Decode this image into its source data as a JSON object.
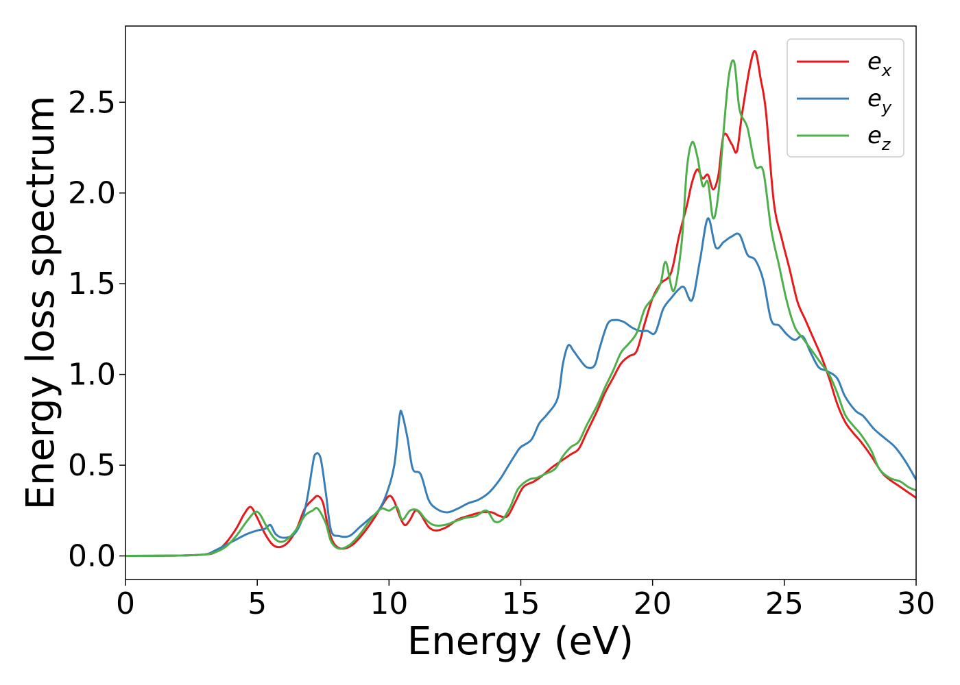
{
  "chart_data": {
    "type": "line",
    "xlabel": "Energy (eV)",
    "ylabel": "Energy loss spectrum",
    "xlim": [
      0,
      30
    ],
    "ylim": [
      -0.13,
      2.92
    ],
    "xticks": [
      "0",
      "5",
      "10",
      "15",
      "20",
      "25",
      "30"
    ],
    "yticks": [
      "0.0",
      "0.5",
      "1.0",
      "1.5",
      "2.0",
      "2.5"
    ],
    "grid": false,
    "legend_position": "top-right",
    "series": [
      {
        "name": "e",
        "subscript": "x",
        "color": "#e41a1c",
        "points": [
          [
            0,
            0
          ],
          [
            2,
            0.002
          ],
          [
            3,
            0.008
          ],
          [
            3.4,
            0.02
          ],
          [
            3.8,
            0.07
          ],
          [
            4.2,
            0.15
          ],
          [
            4.5,
            0.23
          ],
          [
            4.75,
            0.27
          ],
          [
            5.0,
            0.21
          ],
          [
            5.3,
            0.12
          ],
          [
            5.6,
            0.06
          ],
          [
            5.9,
            0.05
          ],
          [
            6.2,
            0.08
          ],
          [
            6.5,
            0.15
          ],
          [
            6.8,
            0.26
          ],
          [
            7.1,
            0.31
          ],
          [
            7.3,
            0.33
          ],
          [
            7.5,
            0.29
          ],
          [
            7.7,
            0.15
          ],
          [
            7.9,
            0.07
          ],
          [
            8.2,
            0.04
          ],
          [
            8.6,
            0.06
          ],
          [
            9.0,
            0.12
          ],
          [
            9.4,
            0.2
          ],
          [
            9.7,
            0.27
          ],
          [
            10.0,
            0.33
          ],
          [
            10.2,
            0.3
          ],
          [
            10.4,
            0.22
          ],
          [
            10.6,
            0.17
          ],
          [
            10.8,
            0.2
          ],
          [
            11.0,
            0.25
          ],
          [
            11.2,
            0.23
          ],
          [
            11.5,
            0.16
          ],
          [
            11.8,
            0.14
          ],
          [
            12.2,
            0.16
          ],
          [
            12.6,
            0.2
          ],
          [
            13.0,
            0.22
          ],
          [
            13.5,
            0.24
          ],
          [
            13.9,
            0.24
          ],
          [
            14.2,
            0.22
          ],
          [
            14.5,
            0.22
          ],
          [
            14.8,
            0.3
          ],
          [
            15.1,
            0.38
          ],
          [
            15.5,
            0.41
          ],
          [
            15.8,
            0.44
          ],
          [
            16.2,
            0.49
          ],
          [
            16.5,
            0.52
          ],
          [
            16.9,
            0.56
          ],
          [
            17.2,
            0.59
          ],
          [
            17.5,
            0.68
          ],
          [
            17.9,
            0.8
          ],
          [
            18.2,
            0.9
          ],
          [
            18.5,
            0.98
          ],
          [
            18.8,
            1.06
          ],
          [
            19.1,
            1.1
          ],
          [
            19.4,
            1.13
          ],
          [
            19.7,
            1.28
          ],
          [
            20.0,
            1.42
          ],
          [
            20.3,
            1.5
          ],
          [
            20.7,
            1.56
          ],
          [
            21.0,
            1.76
          ],
          [
            21.3,
            1.93
          ],
          [
            21.5,
            2.06
          ],
          [
            21.7,
            2.13
          ],
          [
            21.9,
            2.08
          ],
          [
            22.1,
            2.1
          ],
          [
            22.3,
            2.02
          ],
          [
            22.5,
            2.1
          ],
          [
            22.7,
            2.32
          ],
          [
            23.0,
            2.27
          ],
          [
            23.2,
            2.23
          ],
          [
            23.4,
            2.44
          ],
          [
            23.7,
            2.7
          ],
          [
            23.9,
            2.78
          ],
          [
            24.1,
            2.63
          ],
          [
            24.3,
            2.45
          ],
          [
            24.6,
            1.95
          ],
          [
            24.9,
            1.75
          ],
          [
            25.2,
            1.58
          ],
          [
            25.5,
            1.4
          ],
          [
            25.8,
            1.3
          ],
          [
            26.1,
            1.2
          ],
          [
            26.4,
            1.1
          ],
          [
            26.7,
            0.98
          ],
          [
            27.0,
            0.84
          ],
          [
            27.3,
            0.74
          ],
          [
            27.6,
            0.68
          ],
          [
            27.9,
            0.63
          ],
          [
            28.3,
            0.55
          ],
          [
            28.7,
            0.46
          ],
          [
            29.0,
            0.42
          ],
          [
            29.4,
            0.38
          ],
          [
            29.7,
            0.35
          ],
          [
            30.0,
            0.32
          ]
        ]
      },
      {
        "name": "e",
        "subscript": "y",
        "color": "#377eb8",
        "points": [
          [
            0,
            0
          ],
          [
            2,
            0.002
          ],
          [
            3,
            0.008
          ],
          [
            3.4,
            0.03
          ],
          [
            3.8,
            0.06
          ],
          [
            4.2,
            0.09
          ],
          [
            4.6,
            0.12
          ],
          [
            5.0,
            0.14
          ],
          [
            5.3,
            0.15
          ],
          [
            5.5,
            0.17
          ],
          [
            5.7,
            0.12
          ],
          [
            6.0,
            0.1
          ],
          [
            6.4,
            0.12
          ],
          [
            6.7,
            0.2
          ],
          [
            6.9,
            0.32
          ],
          [
            7.1,
            0.5
          ],
          [
            7.2,
            0.56
          ],
          [
            7.4,
            0.54
          ],
          [
            7.6,
            0.35
          ],
          [
            7.8,
            0.14
          ],
          [
            8.1,
            0.11
          ],
          [
            8.5,
            0.11
          ],
          [
            8.9,
            0.16
          ],
          [
            9.3,
            0.21
          ],
          [
            9.6,
            0.25
          ],
          [
            9.9,
            0.34
          ],
          [
            10.2,
            0.5
          ],
          [
            10.4,
            0.77
          ],
          [
            10.5,
            0.78
          ],
          [
            10.7,
            0.65
          ],
          [
            10.9,
            0.48
          ],
          [
            11.2,
            0.45
          ],
          [
            11.5,
            0.31
          ],
          [
            11.8,
            0.26
          ],
          [
            12.2,
            0.24
          ],
          [
            12.6,
            0.26
          ],
          [
            13.0,
            0.29
          ],
          [
            13.4,
            0.31
          ],
          [
            13.8,
            0.35
          ],
          [
            14.2,
            0.42
          ],
          [
            14.5,
            0.49
          ],
          [
            14.8,
            0.56
          ],
          [
            15.0,
            0.6
          ],
          [
            15.4,
            0.64
          ],
          [
            15.7,
            0.73
          ],
          [
            16.0,
            0.78
          ],
          [
            16.4,
            0.87
          ],
          [
            16.6,
            1.06
          ],
          [
            16.8,
            1.16
          ],
          [
            17.0,
            1.13
          ],
          [
            17.2,
            1.09
          ],
          [
            17.5,
            1.04
          ],
          [
            17.8,
            1.05
          ],
          [
            18.0,
            1.15
          ],
          [
            18.3,
            1.28
          ],
          [
            18.6,
            1.3
          ],
          [
            18.9,
            1.29
          ],
          [
            19.2,
            1.26
          ],
          [
            19.5,
            1.24
          ],
          [
            19.8,
            1.24
          ],
          [
            20.1,
            1.23
          ],
          [
            20.4,
            1.36
          ],
          [
            20.7,
            1.42
          ],
          [
            21.0,
            1.47
          ],
          [
            21.2,
            1.48
          ],
          [
            21.5,
            1.41
          ],
          [
            21.8,
            1.63
          ],
          [
            22.1,
            1.86
          ],
          [
            22.4,
            1.7
          ],
          [
            22.7,
            1.73
          ],
          [
            23.0,
            1.76
          ],
          [
            23.3,
            1.77
          ],
          [
            23.6,
            1.66
          ],
          [
            23.9,
            1.63
          ],
          [
            24.2,
            1.52
          ],
          [
            24.5,
            1.3
          ],
          [
            24.8,
            1.27
          ],
          [
            25.1,
            1.22
          ],
          [
            25.4,
            1.19
          ],
          [
            25.7,
            1.21
          ],
          [
            26.0,
            1.12
          ],
          [
            26.3,
            1.04
          ],
          [
            26.6,
            1.02
          ],
          [
            27.0,
            0.98
          ],
          [
            27.3,
            0.88
          ],
          [
            27.7,
            0.8
          ],
          [
            28.0,
            0.77
          ],
          [
            28.4,
            0.7
          ],
          [
            28.8,
            0.65
          ],
          [
            29.2,
            0.6
          ],
          [
            29.6,
            0.52
          ],
          [
            30.0,
            0.42
          ]
        ]
      },
      {
        "name": "e",
        "subscript": "z",
        "color": "#4daf4a",
        "points": [
          [
            0,
            0
          ],
          [
            2,
            0.002
          ],
          [
            3,
            0.008
          ],
          [
            3.4,
            0.02
          ],
          [
            3.8,
            0.05
          ],
          [
            4.2,
            0.11
          ],
          [
            4.6,
            0.19
          ],
          [
            4.9,
            0.24
          ],
          [
            5.1,
            0.23
          ],
          [
            5.4,
            0.15
          ],
          [
            5.7,
            0.09
          ],
          [
            6.0,
            0.08
          ],
          [
            6.4,
            0.13
          ],
          [
            6.8,
            0.22
          ],
          [
            7.1,
            0.25
          ],
          [
            7.3,
            0.26
          ],
          [
            7.6,
            0.18
          ],
          [
            7.8,
            0.08
          ],
          [
            8.1,
            0.04
          ],
          [
            8.5,
            0.06
          ],
          [
            8.9,
            0.12
          ],
          [
            9.3,
            0.2
          ],
          [
            9.7,
            0.26
          ],
          [
            10.0,
            0.25
          ],
          [
            10.3,
            0.27
          ],
          [
            10.5,
            0.2
          ],
          [
            10.8,
            0.25
          ],
          [
            11.1,
            0.25
          ],
          [
            11.4,
            0.2
          ],
          [
            11.7,
            0.17
          ],
          [
            12.1,
            0.17
          ],
          [
            12.5,
            0.19
          ],
          [
            12.9,
            0.21
          ],
          [
            13.3,
            0.22
          ],
          [
            13.7,
            0.25
          ],
          [
            14.0,
            0.19
          ],
          [
            14.3,
            0.2
          ],
          [
            14.6,
            0.27
          ],
          [
            14.9,
            0.37
          ],
          [
            15.3,
            0.42
          ],
          [
            15.6,
            0.43
          ],
          [
            15.9,
            0.45
          ],
          [
            16.3,
            0.48
          ],
          [
            16.6,
            0.55
          ],
          [
            16.9,
            0.6
          ],
          [
            17.2,
            0.63
          ],
          [
            17.5,
            0.72
          ],
          [
            17.9,
            0.83
          ],
          [
            18.2,
            0.93
          ],
          [
            18.5,
            1.02
          ],
          [
            18.8,
            1.12
          ],
          [
            19.1,
            1.17
          ],
          [
            19.4,
            1.23
          ],
          [
            19.7,
            1.36
          ],
          [
            20.0,
            1.42
          ],
          [
            20.3,
            1.5
          ],
          [
            20.5,
            1.62
          ],
          [
            20.8,
            1.46
          ],
          [
            21.1,
            1.72
          ],
          [
            21.3,
            2.13
          ],
          [
            21.5,
            2.28
          ],
          [
            21.7,
            2.2
          ],
          [
            21.9,
            2.04
          ],
          [
            22.1,
            2.06
          ],
          [
            22.3,
            1.86
          ],
          [
            22.5,
            2.0
          ],
          [
            22.7,
            2.35
          ],
          [
            22.9,
            2.65
          ],
          [
            23.1,
            2.72
          ],
          [
            23.3,
            2.46
          ],
          [
            23.6,
            2.36
          ],
          [
            23.9,
            2.15
          ],
          [
            24.2,
            2.12
          ],
          [
            24.5,
            1.8
          ],
          [
            24.8,
            1.6
          ],
          [
            25.1,
            1.4
          ],
          [
            25.4,
            1.26
          ],
          [
            25.7,
            1.2
          ],
          [
            26.0,
            1.14
          ],
          [
            26.4,
            1.06
          ],
          [
            26.7,
            1.0
          ],
          [
            27.0,
            0.9
          ],
          [
            27.3,
            0.78
          ],
          [
            27.6,
            0.72
          ],
          [
            27.9,
            0.67
          ],
          [
            28.3,
            0.58
          ],
          [
            28.6,
            0.48
          ],
          [
            29.0,
            0.43
          ],
          [
            29.4,
            0.41
          ],
          [
            29.7,
            0.38
          ],
          [
            30.0,
            0.36
          ]
        ]
      }
    ]
  }
}
